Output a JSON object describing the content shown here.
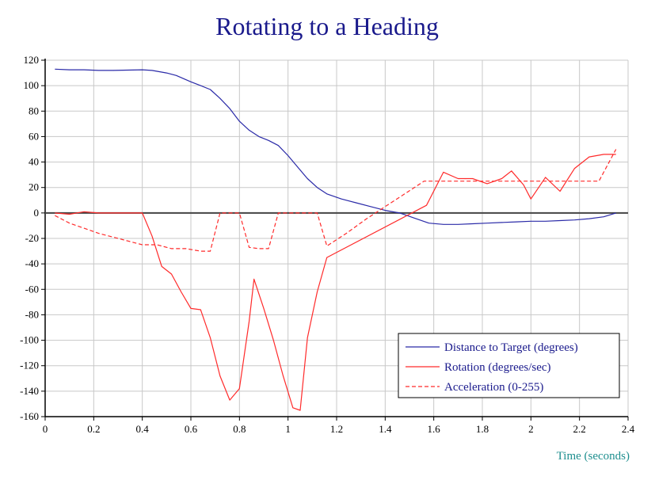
{
  "chart_data": {
    "type": "line",
    "title": "Rotating to a Heading",
    "xlabel": "Time (seconds)",
    "ylabel": "",
    "xlim": [
      0,
      2.4
    ],
    "ylim": [
      -160,
      120
    ],
    "xticks": [
      0,
      0.2,
      0.4,
      0.6,
      0.8,
      1,
      1.2,
      1.4,
      1.6,
      1.8,
      2,
      2.2,
      2.4
    ],
    "xtick_labels": [
      "0",
      "0.2",
      "0.4",
      "0.6",
      "0.8",
      "1",
      "1.2",
      "1.4",
      "1.6",
      "1.8",
      "2",
      "2.2",
      "2.4"
    ],
    "yticks": [
      -160,
      -140,
      -120,
      -100,
      -80,
      -60,
      -40,
      -20,
      0,
      20,
      40,
      60,
      80,
      100,
      120
    ],
    "ytick_labels": [
      "-160",
      "-140",
      "-120",
      "-100",
      "-80",
      "-60",
      "-40",
      "-20",
      "0",
      "20",
      "40",
      "60",
      "80",
      "100",
      "120"
    ],
    "grid": true,
    "legend_position": "bottom-right",
    "series": [
      {
        "name": "Distance to Target (degrees)",
        "color": "#2a2aa8",
        "dash": "solid",
        "x": [
          0.04,
          0.1,
          0.16,
          0.22,
          0.28,
          0.34,
          0.4,
          0.44,
          0.5,
          0.54,
          0.6,
          0.64,
          0.68,
          0.72,
          0.76,
          0.8,
          0.84,
          0.88,
          0.92,
          0.96,
          1.0,
          1.04,
          1.08,
          1.12,
          1.16,
          1.22,
          1.28,
          1.34,
          1.4,
          1.46,
          1.52,
          1.58,
          1.64,
          1.7,
          1.76,
          1.82,
          1.88,
          1.94,
          2.0,
          2.06,
          2.12,
          2.18,
          2.24,
          2.3,
          2.35
        ],
        "y": [
          113,
          112.5,
          112.5,
          112,
          112,
          112.2,
          112.5,
          112,
          110,
          108,
          103,
          100,
          97,
          90,
          82,
          72,
          65,
          60,
          57,
          53,
          45,
          36,
          27,
          20,
          15,
          11,
          8,
          5,
          2,
          0,
          -4,
          -8,
          -9,
          -9,
          -8.5,
          -8,
          -7.5,
          -7,
          -6.5,
          -6.5,
          -6,
          -5.5,
          -4.5,
          -3,
          0
        ]
      },
      {
        "name": "Rotation (degrees/sec)",
        "color": "#ff2a2a",
        "dash": "solid",
        "x": [
          0.04,
          0.1,
          0.16,
          0.22,
          0.28,
          0.34,
          0.4,
          0.44,
          0.48,
          0.52,
          0.56,
          0.6,
          0.64,
          0.68,
          0.72,
          0.76,
          0.8,
          0.84,
          0.86,
          0.9,
          0.94,
          0.98,
          1.02,
          1.05,
          1.08,
          1.12,
          1.16,
          1.57,
          1.64,
          1.7,
          1.76,
          1.82,
          1.88,
          1.92,
          1.97,
          2.0,
          2.06,
          2.12,
          2.18,
          2.24,
          2.3,
          2.35
        ],
        "y": [
          0,
          -1,
          1,
          0,
          0,
          0,
          0,
          -18,
          -42,
          -48,
          -62,
          -75,
          -76,
          -98,
          -128,
          -147,
          -138,
          -85,
          -52,
          -75,
          -100,
          -128,
          -153,
          -155,
          -98,
          -62,
          -35,
          6,
          32,
          27,
          27,
          23,
          27,
          33,
          22,
          11,
          28,
          17,
          35,
          44,
          46,
          46
        ]
      },
      {
        "name": "Acceleration (0-255)",
        "color": "#ff2a2a",
        "dash": "dashed",
        "x": [
          0.04,
          0.1,
          0.16,
          0.22,
          0.28,
          0.34,
          0.4,
          0.46,
          0.52,
          0.58,
          0.64,
          0.68,
          0.72,
          0.76,
          0.8,
          0.84,
          0.88,
          0.92,
          0.96,
          1.0,
          1.04,
          1.08,
          1.12,
          1.16,
          1.24,
          1.32,
          1.4,
          1.48,
          1.56,
          1.64,
          1.72,
          1.8,
          1.88,
          1.96,
          2.04,
          2.12,
          2.2,
          2.28,
          2.35
        ],
        "y": [
          -2,
          -8,
          -12,
          -16,
          -19,
          -22,
          -25,
          -25,
          -28,
          -28,
          -30,
          -30,
          0,
          0,
          0,
          -27,
          -28,
          -28,
          0,
          0,
          0,
          0,
          0,
          -26,
          -16,
          -5,
          5,
          15,
          25,
          25,
          25,
          25,
          25,
          25,
          25,
          25,
          25,
          25,
          50
        ]
      }
    ]
  }
}
